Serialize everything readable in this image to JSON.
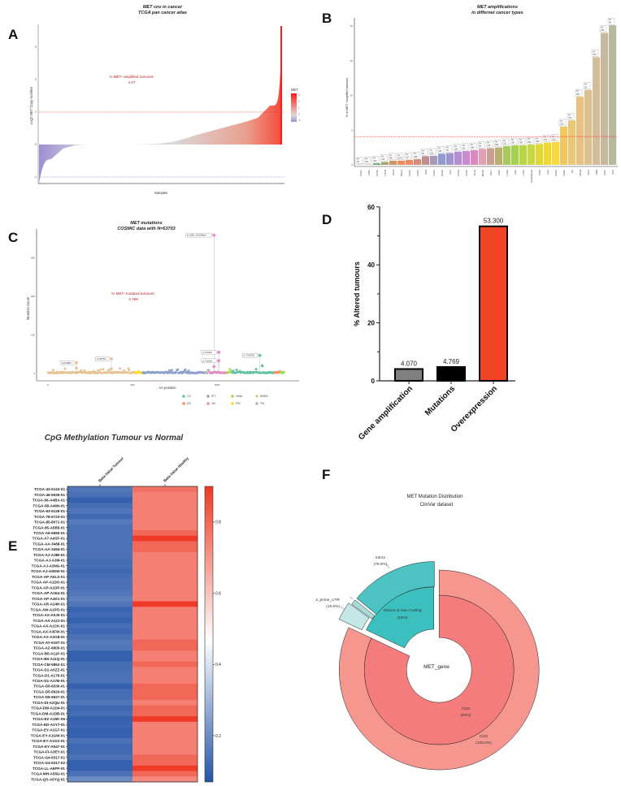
{
  "panels": {
    "a": "A",
    "b": "B",
    "c": "C",
    "d": "D",
    "e": "E",
    "f": "F"
  },
  "chart_data": [
    {
      "panel": "A",
      "type": "area",
      "title": "MET cnv in cancer",
      "subtitle": "TCGA pan cancer atlas",
      "xlabel": "Samples",
      "ylabel": "Log2 MET Copy Number",
      "yticks": [
        -1,
        0,
        1,
        2,
        3
      ],
      "ylim": [
        -1.2,
        3.6
      ],
      "thresholds": [
        {
          "value": 1,
          "color": "#ff3030"
        },
        {
          "value": -1,
          "color": "#8b80d0"
        }
      ],
      "annotation": "% MET−amplified tumours:",
      "annotation_value": "4.07",
      "legend_title": "MET",
      "legend_ticks": [
        3,
        2,
        1,
        0,
        -1
      ],
      "sorted_profile": [
        -1.2,
        -0.45,
        -0.12,
        -0.02,
        0,
        0,
        0,
        0,
        0,
        0.01,
        0.03,
        0.08,
        0.18,
        0.3,
        0.4,
        0.5,
        0.6,
        0.7,
        0.82,
        1.2,
        3.65
      ],
      "colors": {
        "low": "#9d8fd1",
        "mid": "#d9d9d9",
        "high": "#ff1a1a"
      }
    },
    {
      "panel": "B",
      "type": "bar",
      "title": "MET amplifications",
      "subtitle": "in differnet cancer types",
      "ylabel": "% of MET−amplified tumours",
      "yticks": [
        0,
        5,
        10,
        15,
        20
      ],
      "ylim": [
        0,
        20.5
      ],
      "threshold": 4.07,
      "n_prefix": "N=",
      "categories": [
        "CHOL",
        "LAML",
        "CESC",
        "THYM",
        "THCA",
        "BRCA",
        "HNSC",
        "PRAD",
        "UVM",
        "UCEC",
        "READ",
        "UCS",
        "PCPG",
        "DLBC",
        "BLCA",
        "MESO",
        "TGCT",
        "KIRC",
        "LUAD",
        "LIHC",
        "LUSC",
        "COADREAD",
        "STAD",
        "LGG",
        "ESCA",
        "SARC",
        "OV",
        "SKCM",
        "KICH",
        "GBM",
        "KIRP",
        "ACC"
      ],
      "values": [
        0.05,
        0.05,
        0.2,
        0.4,
        0.6,
        0.6,
        0.7,
        0.8,
        1.25,
        1.3,
        1.6,
        1.7,
        1.9,
        2.0,
        2.1,
        2.3,
        2.4,
        2.5,
        2.7,
        2.8,
        2.8,
        2.9,
        3.0,
        3.2,
        3.3,
        5.5,
        6.4,
        9.8,
        10.8,
        15.5,
        19.0,
        20.1
      ],
      "n_labels": [
        "36",
        "191",
        "200",
        "123",
        "497",
        "1070",
        "517",
        "488",
        "80",
        "523",
        "155",
        "56",
        "154",
        "48",
        "408",
        "87",
        "149",
        "509",
        "511",
        "367",
        "487",
        "550",
        "408",
        "511",
        "152",
        "233",
        "373",
        "567",
        "66",
        "576",
        "263",
        "66"
      ],
      "colors": [
        "#b0b0b0",
        "#a8a8a8",
        "#5aa469",
        "#a3a56a",
        "#c9966a",
        "#f08a5d",
        "#ee8a6a",
        "#d88a7a",
        "#c09090",
        "#a79ab8",
        "#8f9bd0",
        "#9d95cf",
        "#b58fcf",
        "#c98ad0",
        "#d98ac0",
        "#e0a0b8",
        "#c9a090",
        "#b8b070",
        "#a8c860",
        "#a8d050",
        "#b8d448",
        "#c8d840",
        "#e0d838",
        "#f0d830",
        "#f8d840",
        "#f0c860",
        "#e8c878",
        "#e8c080",
        "#dcc090",
        "#d4bc98",
        "#c8b8a0",
        "#b8b89c"
      ]
    },
    {
      "panel": "C",
      "type": "scatter",
      "title": "MET mutations",
      "subtitle": "COSMIC data with N=63703",
      "xlabel": "AA position",
      "ylabel": "Mutation Count",
      "xticks": [
        0,
        500,
        1000
      ],
      "yticks": [
        0,
        100,
        200,
        300
      ],
      "annotation": "% MET−mutated tumours:",
      "annotation_value": "4.769",
      "domains": [
        {
          "name": "SEMA",
          "start": 1,
          "end": 515
        },
        {
          "name": "PSI",
          "start": 516,
          "end": 562
        },
        {
          "name": "IPT",
          "start": 563,
          "end": 930
        },
        {
          "name": "TM",
          "start": 931,
          "end": 955
        },
        {
          "name": "JM",
          "start": 956,
          "end": 1060
        },
        {
          "name": "Other",
          "start": 1061,
          "end": 1090
        },
        {
          "name": "CS",
          "start": 1091,
          "end": 1340
        },
        {
          "name": "DS",
          "start": 1341,
          "end": 1375
        },
        {
          "name": "Other",
          "start": 1376,
          "end": 1400
        }
      ],
      "legend": [
        {
          "name": "CS",
          "color": "#66c2a5"
        },
        {
          "name": "DS",
          "color": "#fc8d62"
        },
        {
          "name": "IPT",
          "color": "#8da0cb"
        },
        {
          "name": "JM",
          "color": "#e78ac3"
        },
        {
          "name": "Other",
          "color": "#a6d854"
        },
        {
          "name": "PSI",
          "color": "#ffd92f"
        },
        {
          "name": "SEMA",
          "color": "#e5c494"
        },
        {
          "name": "TM",
          "color": "#b3b3b3"
        }
      ],
      "peaks": [
        {
          "label": "p.E168D",
          "position": 168,
          "count": 28,
          "secondary": 14
        },
        {
          "label": "p.N375S",
          "position": 375,
          "count": 38,
          "secondary": 12
        },
        {
          "label": "p.L982_D1028del",
          "position": 982,
          "count": 358,
          "secondary": 18
        },
        {
          "label": "p.T1010I",
          "position": 1010,
          "count": 55,
          "secondary": 0
        },
        {
          "label": "p.T1010I",
          "position": 1010,
          "count": 33,
          "secondary": 0
        },
        {
          "label": "p.Y1253D",
          "position": 1253,
          "count": 47,
          "secondary": 20
        }
      ]
    },
    {
      "panel": "D",
      "type": "bar",
      "ylabel": "% Altered tumours",
      "yticks": [
        0,
        20,
        40,
        60
      ],
      "ylim": [
        0,
        60
      ],
      "categories": [
        "Gene amplification",
        "Mutations",
        "Overexpression"
      ],
      "values": [
        4.07,
        4.769,
        53.3
      ],
      "value_labels": [
        "4.070",
        "4.769",
        "53.300"
      ],
      "colors": [
        "#808080",
        "#000000",
        "#f04424"
      ]
    },
    {
      "panel": "E",
      "type": "heatmap",
      "title": "CpG Methylation Tumour vs Normal",
      "columns": [
        "Beta-Value Tumour",
        "Beta-Value Healthy"
      ],
      "colorbar_ticks": [
        0.8,
        0.6,
        0.4,
        0.2
      ],
      "colorbar_range": [
        0.07,
        0.9
      ],
      "colors": {
        "low": "#2554a8",
        "mid": "#ffffff",
        "high": "#ee3a26"
      },
      "rows": [
        "TCGA-43-6143-01",
        "TCGA-46-6026-01",
        "TCGA-56-A4BX-01",
        "TCGA-58-A46N-01",
        "TCGA-63-5128-01",
        "TCGA-78-6723-01",
        "TCGA-85-8071-01",
        "TCGA-85-A5B5-01",
        "TCGA-A6-6650-01",
        "TCGA-A7-A4SF-01",
        "TCGA-AA-3488-01",
        "TCGA-AA-3494-01",
        "TCGA-AJ-A3BI-01",
        "TCGA-AJ-A3I9-01",
        "TCGA-AJ-A3NG-01",
        "TCGA-AJ-A5DW-01",
        "TCGA-AP-A0LS-01",
        "TCGA-AP-A1DO-01",
        "TCGA-AP-A1DP-01",
        "TCGA-AP-A1E4-01",
        "TCGA-AP-A3K1-01",
        "TCGA-AR-A24H-01",
        "TCGA-AW-A1PO-01",
        "TCGA-AX-A0J0-01",
        "TCGA-AX-A1CI-01",
        "TCGA-AX-A1CK-01",
        "TCGA-AX-A3FW-01",
        "TCGA-AX-A3G8-01",
        "TCGA-AY-6197-01",
        "TCGA-AZ-6600-01",
        "TCGA-B5-A11P-01",
        "TCGA-B5-A11Q-01",
        "TCGA-CM-5862-01",
        "TCGA-D1-A0ZZ-01",
        "TCGA-D1-A176-01",
        "TCGA-D1-A17B-01",
        "TCGA-D5-6530-01",
        "TCGA-D5-6924-01",
        "TCGA-D5-6927-01",
        "TCGA-DI-A2QU-01",
        "TCGA-DM-A1D4-01",
        "TCGA-DM-A1DB-01",
        "TCGA-E2-A15K-06",
        "TCGA-ED-A1Y7-01",
        "TCGA-EY-A1G7-01",
        "TCGA-EY-A1GW-01",
        "TCGA-EY-A1GX-01",
        "TCGA-EY-A547-01",
        "TCGA-FI-A3EY-01",
        "TCGA-G4-6317-01",
        "TCGA-G4-6317-02",
        "TCGA-LL-A6FP-01",
        "TCGA-MH-A55U-01",
        "TCGA-QS-A5YQ-01"
      ],
      "tumour": [
        0.15,
        0.14,
        0.1,
        0.13,
        0.15,
        0.12,
        0.16,
        0.14,
        0.14,
        0.14,
        0.14,
        0.14,
        0.14,
        0.13,
        0.13,
        0.12,
        0.13,
        0.14,
        0.14,
        0.15,
        0.17,
        0.15,
        0.11,
        0.12,
        0.1,
        0.13,
        0.12,
        0.14,
        0.16,
        0.15,
        0.1,
        0.1,
        0.13,
        0.13,
        0.14,
        0.14,
        0.1,
        0.13,
        0.13,
        0.15,
        0.12,
        0.13,
        0.1,
        0.11,
        0.1,
        0.1,
        0.14,
        0.12,
        0.12,
        0.14,
        0.1,
        0.1,
        0.14,
        0.2
      ],
      "healthy": [
        0.78,
        0.75,
        0.75,
        0.75,
        0.75,
        0.75,
        0.75,
        0.75,
        0.8,
        0.9,
        0.8,
        0.8,
        0.75,
        0.75,
        0.75,
        0.75,
        0.75,
        0.75,
        0.75,
        0.75,
        0.75,
        0.9,
        0.75,
        0.75,
        0.75,
        0.75,
        0.75,
        0.75,
        0.8,
        0.8,
        0.75,
        0.75,
        0.8,
        0.75,
        0.75,
        0.75,
        0.8,
        0.8,
        0.8,
        0.75,
        0.8,
        0.8,
        0.9,
        0.75,
        0.75,
        0.75,
        0.75,
        0.75,
        0.75,
        0.8,
        0.8,
        0.9,
        0.8,
        0.73
      ]
    },
    {
      "panel": "F",
      "type": "pie",
      "title": "MET Mutation Distribution",
      "subtitle": "ClinVar dataset",
      "center_label": "MET_gene",
      "inner": [
        {
          "label": "CDS",
          "pct": 82,
          "pct_label": "(82%)",
          "color": "#f47c7c"
        },
        {
          "label": "Introns or Non Coding",
          "pct": 18,
          "pct_label": "(18%)",
          "color": "#3bbfbf"
        }
      ],
      "outer": [
        {
          "label": "CDS",
          "parent": "CDS",
          "share": 100.0,
          "pct_label": "(100.0%)",
          "color": "#f6978f"
        },
        {
          "label": "3_prime_UTR",
          "parent": "Introns or Non Coding",
          "share": 16.6,
          "pct_label": "(16.6%)",
          "color": "#c5e8e6"
        },
        {
          "parent": "Introns or Non Coding",
          "share": 4.8,
          "color": "#a8dcd9"
        },
        {
          "label": "Intron",
          "parent": "Introns or Non Coding",
          "share": 78.6,
          "pct_label": "(78.6%)",
          "color": "#4cc2c2"
        }
      ]
    }
  ]
}
